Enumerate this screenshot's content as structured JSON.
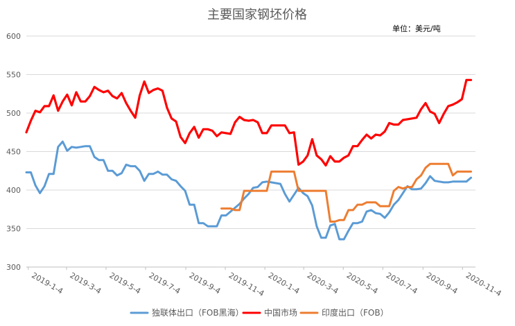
{
  "chart_data": {
    "type": "line",
    "title": "主要国家钢坯价格",
    "unit_label": "单位：美元/吨",
    "xlabel": "",
    "ylabel": "",
    "ylim": [
      300,
      600
    ],
    "yticks": [
      300,
      350,
      400,
      450,
      500,
      550,
      600
    ],
    "grid": "horizontal",
    "legend_position": "bottom",
    "x_range": [
      "2019-01-01",
      "2020-11-24"
    ],
    "x_tick_labels": [
      {
        "date": "2019-01-04",
        "label": "2019-1-4"
      },
      {
        "date": "2019-03-04",
        "label": "2019-3-4"
      },
      {
        "date": "2019-05-04",
        "label": "2019-5-4"
      },
      {
        "date": "2019-07-04",
        "label": "2019-7-4"
      },
      {
        "date": "2019-09-04",
        "label": "2019-9-4"
      },
      {
        "date": "2019-11-04",
        "label": "2019-11-4"
      },
      {
        "date": "2020-01-04",
        "label": "2020-1-4"
      },
      {
        "date": "2020-03-04",
        "label": "2020-3-4"
      },
      {
        "date": "2020-05-04",
        "label": "2020-5-4"
      },
      {
        "date": "2020-07-04",
        "label": "2020-7-4"
      },
      {
        "date": "2020-09-04",
        "label": "2020-9-4"
      },
      {
        "date": "2020-11-04",
        "label": "2020-11-4"
      }
    ],
    "series": [
      {
        "name": "独联体出口（FOB黑海）",
        "color": "#5b9bd5",
        "points": [
          [
            "2019-01-01",
            423
          ],
          [
            "2019-01-08",
            423
          ],
          [
            "2019-01-15",
            406
          ],
          [
            "2019-01-22",
            396
          ],
          [
            "2019-01-29",
            405
          ],
          [
            "2019-02-05",
            421
          ],
          [
            "2019-02-12",
            421
          ],
          [
            "2019-02-19",
            456
          ],
          [
            "2019-02-26",
            463
          ],
          [
            "2019-03-05",
            451
          ],
          [
            "2019-03-12",
            456
          ],
          [
            "2019-03-19",
            455
          ],
          [
            "2019-03-26",
            456
          ],
          [
            "2019-04-02",
            457
          ],
          [
            "2019-04-09",
            457
          ],
          [
            "2019-04-16",
            443
          ],
          [
            "2019-04-23",
            439
          ],
          [
            "2019-04-30",
            439
          ],
          [
            "2019-05-07",
            425
          ],
          [
            "2019-05-14",
            425
          ],
          [
            "2019-05-21",
            419
          ],
          [
            "2019-05-28",
            422
          ],
          [
            "2019-06-04",
            433
          ],
          [
            "2019-06-11",
            431
          ],
          [
            "2019-06-18",
            431
          ],
          [
            "2019-06-25",
            425
          ],
          [
            "2019-07-02",
            412
          ],
          [
            "2019-07-09",
            421
          ],
          [
            "2019-07-16",
            421
          ],
          [
            "2019-07-23",
            424
          ],
          [
            "2019-07-30",
            420
          ],
          [
            "2019-08-06",
            420
          ],
          [
            "2019-08-13",
            414
          ],
          [
            "2019-08-20",
            412
          ],
          [
            "2019-08-27",
            405
          ],
          [
            "2019-09-03",
            399
          ],
          [
            "2019-09-10",
            381
          ],
          [
            "2019-09-17",
            381
          ],
          [
            "2019-09-24",
            357
          ],
          [
            "2019-10-01",
            357
          ],
          [
            "2019-10-08",
            353
          ],
          [
            "2019-10-15",
            353
          ],
          [
            "2019-10-22",
            353
          ],
          [
            "2019-10-29",
            367
          ],
          [
            "2019-11-05",
            367
          ],
          [
            "2019-11-12",
            372
          ],
          [
            "2019-11-19",
            377
          ],
          [
            "2019-11-26",
            382
          ],
          [
            "2019-12-03",
            389
          ],
          [
            "2019-12-10",
            395
          ],
          [
            "2019-12-17",
            403
          ],
          [
            "2019-12-24",
            404
          ],
          [
            "2019-12-31",
            410
          ],
          [
            "2020-01-07",
            411
          ],
          [
            "2020-01-14",
            410
          ],
          [
            "2020-01-21",
            409
          ],
          [
            "2020-01-28",
            408
          ],
          [
            "2020-02-04",
            395
          ],
          [
            "2020-02-11",
            385
          ],
          [
            "2020-02-18",
            394
          ],
          [
            "2020-02-25",
            403
          ],
          [
            "2020-03-03",
            396
          ],
          [
            "2020-03-10",
            392
          ],
          [
            "2020-03-17",
            380
          ],
          [
            "2020-03-24",
            353
          ],
          [
            "2020-03-31",
            338
          ],
          [
            "2020-04-07",
            338
          ],
          [
            "2020-04-14",
            354
          ],
          [
            "2020-04-21",
            356
          ],
          [
            "2020-04-28",
            336
          ],
          [
            "2020-05-05",
            336
          ],
          [
            "2020-05-12",
            347
          ],
          [
            "2020-05-19",
            357
          ],
          [
            "2020-05-26",
            357
          ],
          [
            "2020-06-02",
            359
          ],
          [
            "2020-06-09",
            372
          ],
          [
            "2020-06-16",
            374
          ],
          [
            "2020-06-23",
            370
          ],
          [
            "2020-06-30",
            369
          ],
          [
            "2020-07-07",
            364
          ],
          [
            "2020-07-14",
            371
          ],
          [
            "2020-07-21",
            381
          ],
          [
            "2020-07-28",
            387
          ],
          [
            "2020-08-04",
            396
          ],
          [
            "2020-08-11",
            405
          ],
          [
            "2020-08-18",
            401
          ],
          [
            "2020-08-25",
            401
          ],
          [
            "2020-09-01",
            402
          ],
          [
            "2020-09-08",
            409
          ],
          [
            "2020-09-15",
            418
          ],
          [
            "2020-09-22",
            412
          ],
          [
            "2020-09-29",
            411
          ],
          [
            "2020-10-06",
            410
          ],
          [
            "2020-10-13",
            410
          ],
          [
            "2020-10-20",
            411
          ],
          [
            "2020-10-27",
            411
          ],
          [
            "2020-11-03",
            411
          ],
          [
            "2020-11-10",
            411
          ],
          [
            "2020-11-17",
            416
          ]
        ]
      },
      {
        "name": "中国市场",
        "color": "#ff0000",
        "points": [
          [
            "2019-01-01",
            475
          ],
          [
            "2019-01-08",
            490
          ],
          [
            "2019-01-15",
            503
          ],
          [
            "2019-01-22",
            501
          ],
          [
            "2019-01-29",
            509
          ],
          [
            "2019-02-05",
            509
          ],
          [
            "2019-02-12",
            523
          ],
          [
            "2019-02-19",
            503
          ],
          [
            "2019-02-26",
            515
          ],
          [
            "2019-03-05",
            524
          ],
          [
            "2019-03-12",
            510
          ],
          [
            "2019-03-19",
            527
          ],
          [
            "2019-03-26",
            515
          ],
          [
            "2019-04-02",
            515
          ],
          [
            "2019-04-09",
            522
          ],
          [
            "2019-04-16",
            534
          ],
          [
            "2019-04-23",
            530
          ],
          [
            "2019-04-30",
            527
          ],
          [
            "2019-05-07",
            529
          ],
          [
            "2019-05-14",
            522
          ],
          [
            "2019-05-21",
            519
          ],
          [
            "2019-05-28",
            526
          ],
          [
            "2019-06-04",
            513
          ],
          [
            "2019-06-11",
            503
          ],
          [
            "2019-06-18",
            494
          ],
          [
            "2019-06-25",
            523
          ],
          [
            "2019-07-02",
            541
          ],
          [
            "2019-07-09",
            526
          ],
          [
            "2019-07-16",
            530
          ],
          [
            "2019-07-23",
            532
          ],
          [
            "2019-07-30",
            529
          ],
          [
            "2019-08-06",
            507
          ],
          [
            "2019-08-13",
            493
          ],
          [
            "2019-08-20",
            489
          ],
          [
            "2019-08-27",
            469
          ],
          [
            "2019-09-03",
            461
          ],
          [
            "2019-09-10",
            474
          ],
          [
            "2019-09-17",
            482
          ],
          [
            "2019-09-24",
            468
          ],
          [
            "2019-10-01",
            479
          ],
          [
            "2019-10-08",
            479
          ],
          [
            "2019-10-15",
            477
          ],
          [
            "2019-10-22",
            470
          ],
          [
            "2019-10-29",
            475
          ],
          [
            "2019-11-05",
            474
          ],
          [
            "2019-11-12",
            473
          ],
          [
            "2019-11-19",
            488
          ],
          [
            "2019-11-26",
            495
          ],
          [
            "2019-12-03",
            491
          ],
          [
            "2019-12-10",
            490
          ],
          [
            "2019-12-17",
            491
          ],
          [
            "2019-12-24",
            488
          ],
          [
            "2019-12-31",
            474
          ],
          [
            "2020-01-07",
            474
          ],
          [
            "2020-01-14",
            484
          ],
          [
            "2020-01-21",
            484
          ],
          [
            "2020-01-28",
            484
          ],
          [
            "2020-02-04",
            484
          ],
          [
            "2020-02-11",
            474
          ],
          [
            "2020-02-18",
            475
          ],
          [
            "2020-02-25",
            433
          ],
          [
            "2020-03-03",
            437
          ],
          [
            "2020-03-10",
            445
          ],
          [
            "2020-03-17",
            466
          ],
          [
            "2020-03-24",
            445
          ],
          [
            "2020-03-31",
            440
          ],
          [
            "2020-04-07",
            432
          ],
          [
            "2020-04-14",
            444
          ],
          [
            "2020-04-21",
            437
          ],
          [
            "2020-04-28",
            437
          ],
          [
            "2020-05-05",
            442
          ],
          [
            "2020-05-12",
            445
          ],
          [
            "2020-05-19",
            457
          ],
          [
            "2020-05-26",
            457
          ],
          [
            "2020-06-02",
            465
          ],
          [
            "2020-06-09",
            472
          ],
          [
            "2020-06-16",
            467
          ],
          [
            "2020-06-23",
            472
          ],
          [
            "2020-06-30",
            471
          ],
          [
            "2020-07-07",
            476
          ],
          [
            "2020-07-14",
            487
          ],
          [
            "2020-07-21",
            485
          ],
          [
            "2020-07-28",
            485
          ],
          [
            "2020-08-04",
            491
          ],
          [
            "2020-08-11",
            492
          ],
          [
            "2020-08-18",
            493
          ],
          [
            "2020-08-25",
            494
          ],
          [
            "2020-09-01",
            505
          ],
          [
            "2020-09-08",
            513
          ],
          [
            "2020-09-15",
            502
          ],
          [
            "2020-09-22",
            499
          ],
          [
            "2020-09-29",
            487
          ],
          [
            "2020-10-06",
            499
          ],
          [
            "2020-10-13",
            509
          ],
          [
            "2020-10-20",
            511
          ],
          [
            "2020-10-27",
            514
          ],
          [
            "2020-11-03",
            518
          ],
          [
            "2020-11-10",
            543
          ],
          [
            "2020-11-17",
            543
          ]
        ]
      },
      {
        "name": "印度出口（FOB）",
        "color": "#ed7d31",
        "points": [
          [
            "2019-10-29",
            376
          ],
          [
            "2019-11-05",
            376
          ],
          [
            "2019-11-12",
            376
          ],
          [
            "2019-11-19",
            374
          ],
          [
            "2019-11-26",
            374
          ],
          [
            "2019-12-03",
            399
          ],
          [
            "2019-12-10",
            399
          ],
          [
            "2019-12-17",
            399
          ],
          [
            "2019-12-24",
            399
          ],
          [
            "2019-12-31",
            399
          ],
          [
            "2020-01-07",
            399
          ],
          [
            "2020-01-14",
            424
          ],
          [
            "2020-01-21",
            424
          ],
          [
            "2020-01-28",
            424
          ],
          [
            "2020-02-04",
            424
          ],
          [
            "2020-02-11",
            424
          ],
          [
            "2020-02-18",
            424
          ],
          [
            "2020-02-25",
            399
          ],
          [
            "2020-03-03",
            399
          ],
          [
            "2020-03-10",
            399
          ],
          [
            "2020-03-17",
            399
          ],
          [
            "2020-03-24",
            399
          ],
          [
            "2020-03-31",
            399
          ],
          [
            "2020-04-07",
            399
          ],
          [
            "2020-04-14",
            359
          ],
          [
            "2020-04-21",
            359
          ],
          [
            "2020-04-28",
            361
          ],
          [
            "2020-05-05",
            361
          ],
          [
            "2020-05-12",
            374
          ],
          [
            "2020-05-19",
            374
          ],
          [
            "2020-05-26",
            381
          ],
          [
            "2020-06-02",
            381
          ],
          [
            "2020-06-09",
            384
          ],
          [
            "2020-06-16",
            384
          ],
          [
            "2020-06-23",
            384
          ],
          [
            "2020-06-30",
            379
          ],
          [
            "2020-07-07",
            379
          ],
          [
            "2020-07-14",
            379
          ],
          [
            "2020-07-21",
            399
          ],
          [
            "2020-07-28",
            404
          ],
          [
            "2020-08-04",
            402
          ],
          [
            "2020-08-11",
            404
          ],
          [
            "2020-08-18",
            404
          ],
          [
            "2020-08-25",
            414
          ],
          [
            "2020-09-01",
            419
          ],
          [
            "2020-09-08",
            429
          ],
          [
            "2020-09-15",
            434
          ],
          [
            "2020-09-22",
            434
          ],
          [
            "2020-09-29",
            434
          ],
          [
            "2020-10-06",
            434
          ],
          [
            "2020-10-13",
            434
          ],
          [
            "2020-10-20",
            419
          ],
          [
            "2020-10-27",
            424
          ],
          [
            "2020-11-03",
            424
          ],
          [
            "2020-11-10",
            424
          ],
          [
            "2020-11-17",
            424
          ]
        ]
      }
    ]
  }
}
